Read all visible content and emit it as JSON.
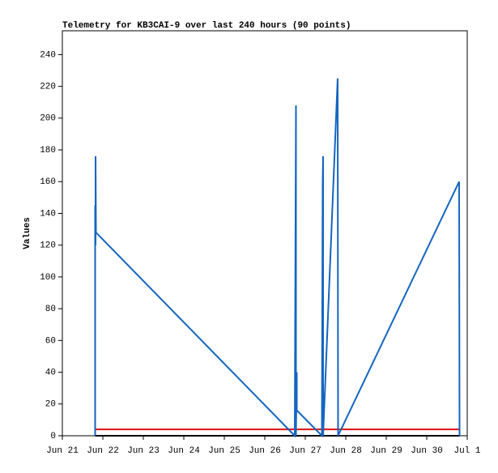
{
  "chart_data": {
    "type": "line",
    "title": "Telemetry for KB3CAI-9 over last 240 hours (90 points)",
    "y_label": "Values",
    "xlim": [
      0,
      10
    ],
    "xticks": [
      {
        "value": 0,
        "label": "Jun 21"
      },
      {
        "value": 1,
        "label": "Jun 22"
      },
      {
        "value": 2,
        "label": "Jun 23"
      },
      {
        "value": 3,
        "label": "Jun 24"
      },
      {
        "value": 4,
        "label": "Jun 25"
      },
      {
        "value": 5,
        "label": "Jun 26"
      },
      {
        "value": 6,
        "label": "Jun 27"
      },
      {
        "value": 7,
        "label": "Jun 28"
      },
      {
        "value": 8,
        "label": "Jun 29"
      },
      {
        "value": 9,
        "label": "Jun 30"
      },
      {
        "value": 10,
        "label": "Jul 1"
      }
    ],
    "ylim": [
      0,
      255
    ],
    "yticks": [
      0,
      20,
      40,
      60,
      80,
      100,
      120,
      140,
      160,
      180,
      200,
      220,
      240
    ],
    "series": [
      {
        "color": "#000000",
        "x": [
          0.81,
          9.81
        ],
        "values": [
          0,
          0
        ]
      },
      {
        "color": "#e01010",
        "x": [
          0.81,
          9.81
        ],
        "values": [
          4,
          4
        ]
      },
      {
        "color": "#1565c0",
        "x": [
          0.81,
          0.81,
          0.82,
          0.82,
          0.83,
          5.74,
          5.77,
          5.77,
          5.79,
          5.79,
          6.41,
          6.43,
          6.44,
          6.44,
          6.8,
          6.81,
          9.8,
          9.81
        ],
        "values": [
          0,
          145,
          120,
          176,
          128,
          0,
          208,
          0,
          40,
          16,
          0,
          160,
          176,
          0,
          225,
          0,
          160,
          0
        ]
      }
    ]
  }
}
